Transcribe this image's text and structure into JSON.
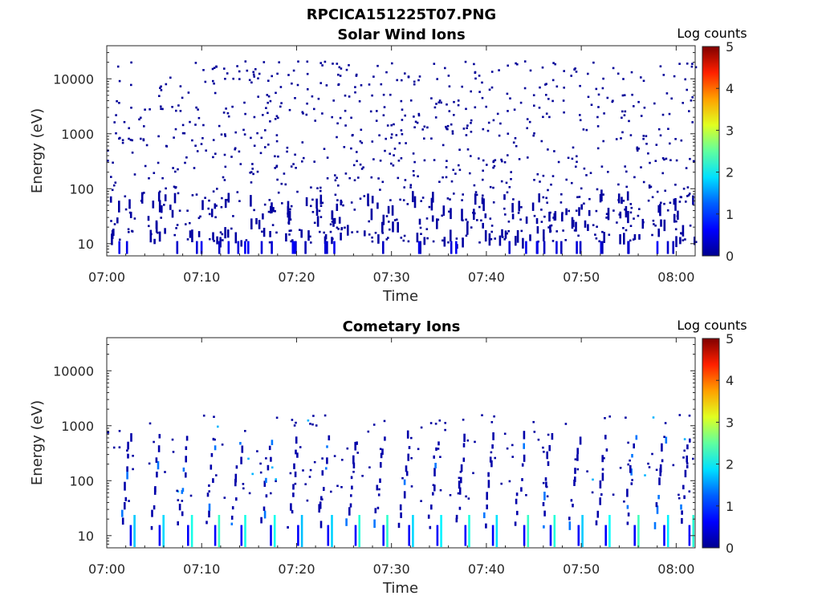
{
  "figure_title": "RPCICA151225T07.PNG",
  "colors": {
    "colormap": [
      "#00008f",
      "#0000ff",
      "#0080ff",
      "#00ffff",
      "#80ff80",
      "#ffff00",
      "#ff8000",
      "#ff0000",
      "#800000"
    ],
    "axis": "#262626"
  },
  "chart_data": [
    {
      "type": "heatmap",
      "title": "Solar Wind Ions",
      "xlabel": "Time",
      "ylabel": "Energy (eV)",
      "x_tick_labels": [
        "07:00",
        "07:10",
        "07:20",
        "07:30",
        "07:40",
        "07:50",
        "08:00"
      ],
      "x_ticks_minutes": [
        0,
        10,
        20,
        30,
        40,
        50,
        60
      ],
      "xlim_minutes": [
        0,
        62
      ],
      "y_scale": "log",
      "ylim": [
        6,
        40000
      ],
      "y_tick_labels": [
        "10",
        "100",
        "1000",
        "10000"
      ],
      "y_ticks": [
        10,
        100,
        1000,
        10000
      ],
      "colorbar": {
        "label": "Log counts",
        "range": [
          0,
          5
        ],
        "tick_labels": [
          "0",
          "1",
          "2",
          "3",
          "4",
          "5"
        ]
      },
      "description_of_values": "Sparse scattered single counts (log counts ~0-0.3) from ~10 eV to ~20000 eV across the whole interval; vertical stripes of low counts at 6-60 eV; no high-count regions."
    },
    {
      "type": "heatmap",
      "title": "Cometary Ions",
      "xlabel": "Time",
      "ylabel": "Energy (eV)",
      "x_tick_labels": [
        "07:00",
        "07:10",
        "07:20",
        "07:30",
        "07:40",
        "07:50",
        "08:00"
      ],
      "x_ticks_minutes": [
        0,
        10,
        20,
        30,
        40,
        50,
        60
      ],
      "xlim_minutes": [
        0,
        62
      ],
      "y_scale": "log",
      "ylim": [
        6,
        40000
      ],
      "y_tick_labels": [
        "10",
        "100",
        "1000",
        "10000"
      ],
      "y_ticks": [
        10,
        100,
        1000,
        10000
      ],
      "colorbar": {
        "label": "Log counts",
        "range": [
          0,
          5
        ],
        "tick_labels": [
          "0",
          "1",
          "2",
          "3",
          "4",
          "5"
        ]
      },
      "description_of_values": "Periodic vertical features roughly every 3 minutes at low energies (6-40 eV) reaching log counts ~1.5-2.2; sparse dispersed traces up to ~1000 eV; isolated counts up to ~6000 eV."
    }
  ]
}
